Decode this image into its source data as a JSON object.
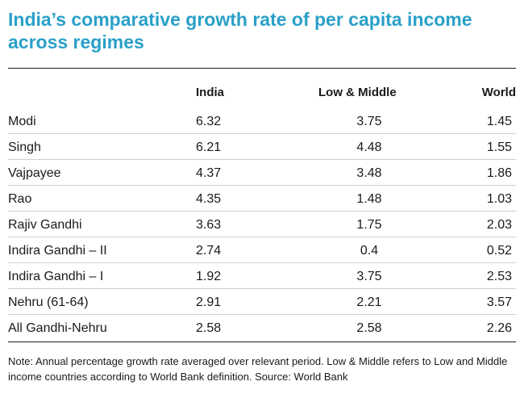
{
  "title": "India’s comparative growth rate of per capita income across regimes",
  "chart_data": {
    "type": "table",
    "columns": [
      "India",
      "Low & Middle",
      "World"
    ],
    "rows": [
      {
        "regime": "Modi",
        "india": "6.32",
        "low_middle": "3.75",
        "world": "1.45"
      },
      {
        "regime": "Singh",
        "india": "6.21",
        "low_middle": "4.48",
        "world": "1.55"
      },
      {
        "regime": "Vajpayee",
        "india": "4.37",
        "low_middle": "3.48",
        "world": "1.86"
      },
      {
        "regime": "Rao",
        "india": "4.35",
        "low_middle": "1.48",
        "world": "1.03"
      },
      {
        "regime": "Rajiv Gandhi",
        "india": "3.63",
        "low_middle": "1.75",
        "world": "2.03"
      },
      {
        "regime": "Indira Gandhi – II",
        "india": "2.74",
        "low_middle": "0.4",
        "world": "0.52"
      },
      {
        "regime": "Indira Gandhi – I",
        "india": "1.92",
        "low_middle": "3.75",
        "world": "2.53"
      },
      {
        "regime": "Nehru (61-64)",
        "india": "2.91",
        "low_middle": "2.21",
        "world": "3.57"
      },
      {
        "regime": "All Gandhi-Nehru",
        "india": "2.58",
        "low_middle": "2.58",
        "world": "2.26"
      }
    ]
  },
  "note": "Note: Annual percentage growth rate averaged over relevant period. Low & Middle refers to Low and Middle income countries according to World Bank definition.  Source: World Bank",
  "colors": {
    "title": "#2aa0c8",
    "text": "#1a1a1a",
    "row_divider": "#cfcfcf"
  }
}
